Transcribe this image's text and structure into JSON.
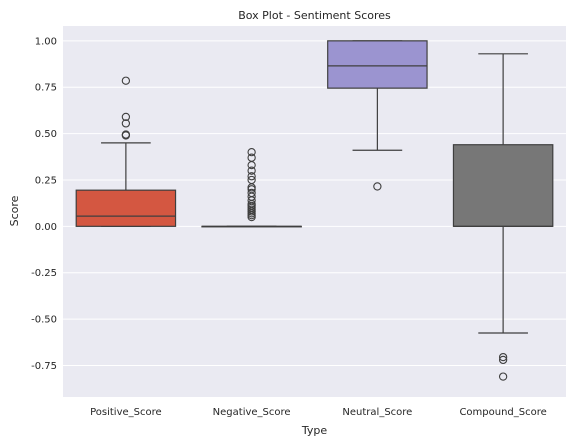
{
  "chart_data": {
    "type": "box",
    "title": "Box Plot - Sentiment Scores",
    "xlabel": "Type",
    "ylabel": "Score",
    "ylim": [
      -0.92,
      1.08
    ],
    "yticks": [
      "1.00",
      "0.75",
      "0.50",
      "0.25",
      "0.00",
      "-0.25",
      "-0.50",
      "-0.75"
    ],
    "grid": true,
    "categories": [
      "Positive_Score",
      "Negative_Score",
      "Neutral_Score",
      "Compound_Score"
    ],
    "boxes": [
      {
        "category": "Positive_Score",
        "color": "#d45741",
        "whisker_low": 0.0,
        "q1": 0.0,
        "median": 0.055,
        "q3": 0.195,
        "whisker_high": 0.45,
        "outliers": [
          0.785,
          0.59,
          0.555,
          0.495,
          0.49
        ]
      },
      {
        "category": "Negative_Score",
        "color": "#4a6fa5",
        "whisker_low": 0.0,
        "q1": 0.0,
        "median": 0.0,
        "q3": 0.0,
        "whisker_high": 0.0,
        "outliers": [
          0.4,
          0.37,
          0.33,
          0.3,
          0.27,
          0.25,
          0.21,
          0.2,
          0.18,
          0.16,
          0.14,
          0.12,
          0.11,
          0.1,
          0.09,
          0.08,
          0.07,
          0.06,
          0.05
        ]
      },
      {
        "category": "Neutral_Score",
        "color": "#9b94d0",
        "whisker_low": 0.41,
        "q1": 0.745,
        "median": 0.865,
        "q3": 1.0,
        "whisker_high": 1.0,
        "outliers": [
          0.215
        ]
      },
      {
        "category": "Compound_Score",
        "color": "#777777",
        "whisker_low": -0.575,
        "q1": 0.0,
        "median": 0.0,
        "q3": 0.44,
        "whisker_high": 0.93,
        "outliers": [
          -0.705,
          -0.72,
          -0.81
        ]
      }
    ]
  }
}
